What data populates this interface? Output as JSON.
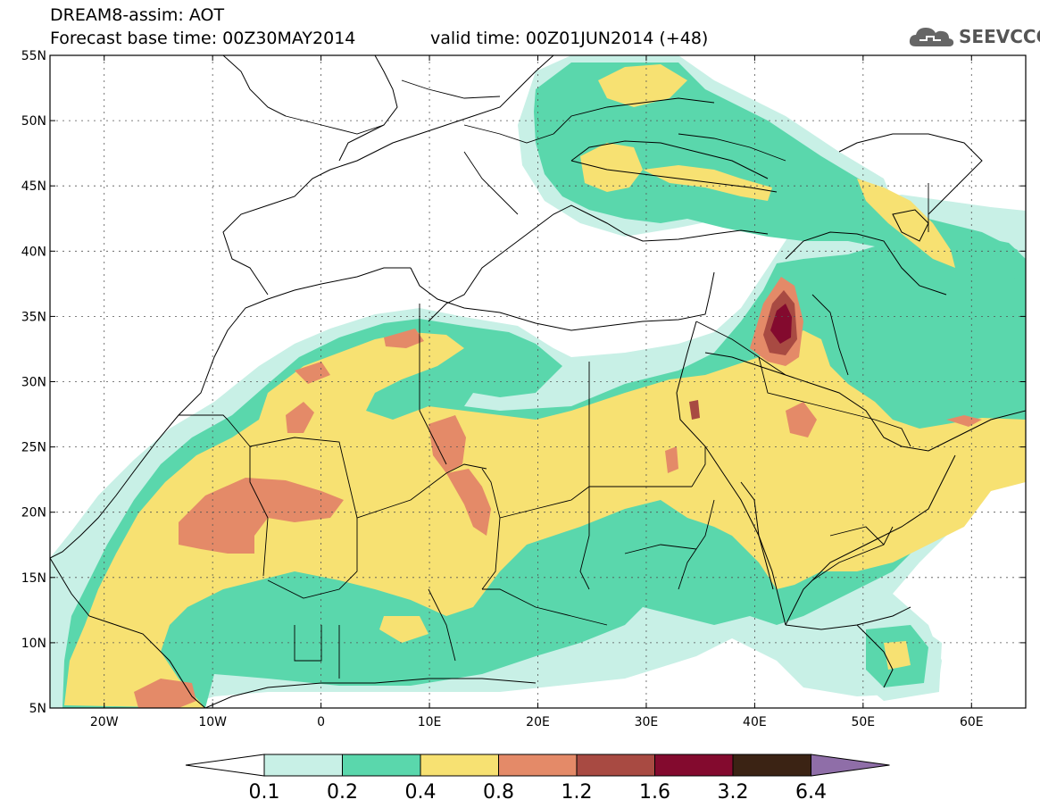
{
  "header": {
    "title": "DREAM8-assim: AOT",
    "base_time": "Forecast base time: 00Z30MAY2014",
    "valid_time": "valid time: 00Z01JUN2014 (+48)",
    "logo_text": "SEEVCCC"
  },
  "map": {
    "lon_range": [
      -25,
      65
    ],
    "lat_range": [
      5,
      55
    ],
    "lon_ticks": [
      {
        "lon": -20,
        "label": "20W"
      },
      {
        "lon": -10,
        "label": "10W"
      },
      {
        "lon": 0,
        "label": "0"
      },
      {
        "lon": 10,
        "label": "10E"
      },
      {
        "lon": 20,
        "label": "20E"
      },
      {
        "lon": 30,
        "label": "30E"
      },
      {
        "lon": 40,
        "label": "40E"
      },
      {
        "lon": 50,
        "label": "50E"
      },
      {
        "lon": 60,
        "label": "60E"
      }
    ],
    "lat_ticks": [
      {
        "lat": 55,
        "label": "55N"
      },
      {
        "lat": 50,
        "label": "50N"
      },
      {
        "lat": 45,
        "label": "45N"
      },
      {
        "lat": 40,
        "label": "40N"
      },
      {
        "lat": 35,
        "label": "35N"
      },
      {
        "lat": 30,
        "label": "30N"
      },
      {
        "lat": 25,
        "label": "25N"
      },
      {
        "lat": 20,
        "label": "20N"
      },
      {
        "lat": 15,
        "label": "15N"
      },
      {
        "lat": 10,
        "label": "10N"
      },
      {
        "lat": 5,
        "label": "5N"
      }
    ],
    "gridlines": true
  },
  "colorbar": {
    "labels": [
      "0.1",
      "0.2",
      "0.4",
      "0.8",
      "1.2",
      "1.6",
      "3.2",
      "6.4"
    ],
    "colors": [
      "#ffffff",
      "#c8f0e6",
      "#5ad7ac",
      "#f7e172",
      "#e48a68",
      "#a84a42",
      "#830a2e",
      "#3b2314",
      "#8f6ea8"
    ]
  },
  "colors": {
    "level1": "#c8f0e6",
    "level2": "#5ad7ac",
    "level3": "#f7e172",
    "level4": "#e48a68",
    "level5": "#a84a42",
    "level6": "#830a2e",
    "coast": "#000000"
  }
}
